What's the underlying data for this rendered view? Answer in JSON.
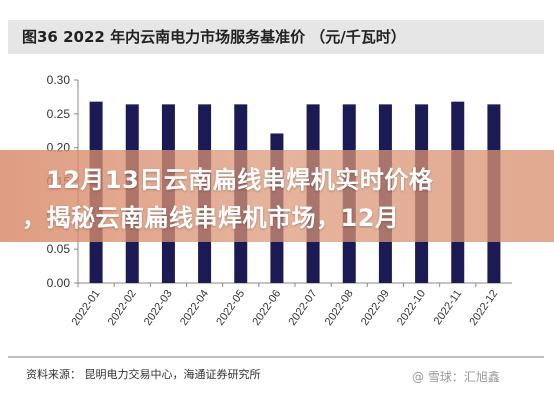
{
  "header": {
    "title": "图36 2022 年内云南电力市场服务基准价 （元/千瓦时）"
  },
  "overlay": {
    "line1": "12月13日云南扁线串焊机实时价格",
    "line2": "，揭秘云南扁线串焊机市场，12月"
  },
  "footer": {
    "source": "资料来源： 昆明电力交易中心，海通证券研究所",
    "watermark": "@ 雪球：汇旭鑫"
  },
  "colors": {
    "bar": "#1c1a55",
    "title_bg": "#e6e6e6",
    "overlay": "#d88868"
  },
  "chart_data": {
    "type": "bar",
    "title": "图36 2022 年内云南电力市场服务基准价 （元/千瓦时）",
    "xlabel": "",
    "ylabel": "",
    "categories": [
      "2022-01",
      "2022-02",
      "2022-03",
      "2022-04",
      "2022-05",
      "2022-06",
      "2022-07",
      "2022-08",
      "2022-09",
      "2022-10",
      "2022-11",
      "2022-12"
    ],
    "values": [
      0.268,
      0.264,
      0.264,
      0.264,
      0.264,
      0.221,
      0.264,
      0.264,
      0.264,
      0.264,
      0.268,
      0.264
    ],
    "ylim": [
      0,
      0.3
    ],
    "yticks": [
      "0.00",
      "0.05",
      "0.10",
      "0.15",
      "0.20",
      "0.25",
      "0.30"
    ],
    "grid": false,
    "legend": "none"
  }
}
